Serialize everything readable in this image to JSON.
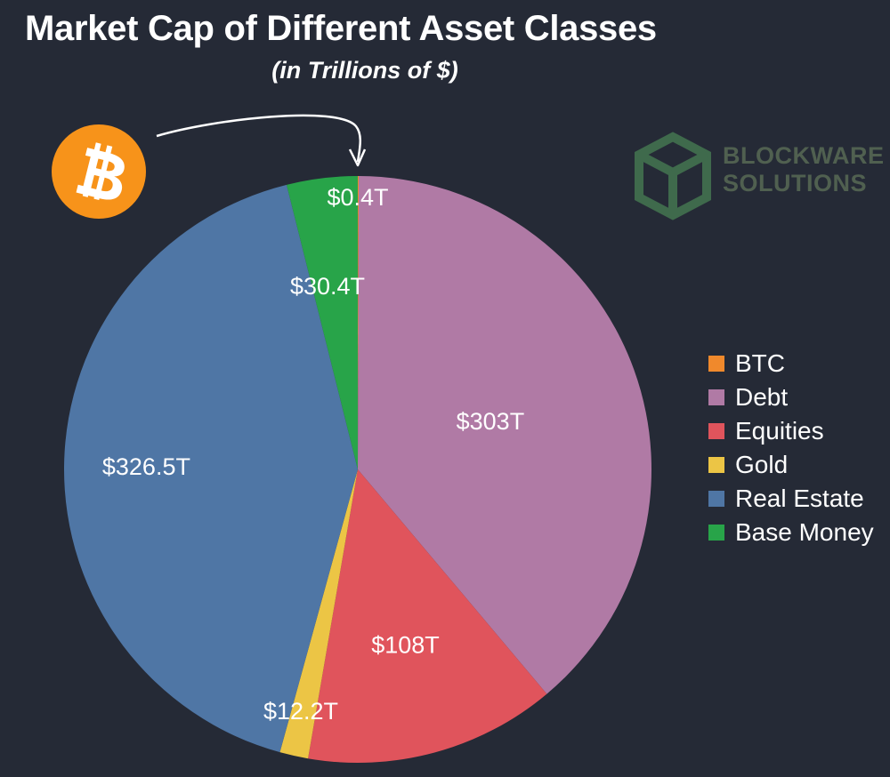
{
  "title": "Market Cap of Different Asset Classes",
  "subtitle": "(in Trillions of $)",
  "logo": {
    "text_line1": "BLOCKWARE",
    "text_line2": "SOLUTIONS",
    "color": "#506050"
  },
  "badge": {
    "icon": "bitcoin-icon",
    "color": "#f7931a"
  },
  "chart_data": {
    "type": "pie",
    "title": "Market Cap of Different Asset Classes",
    "subtitle": "(in Trillions of $)",
    "legend_position": "right",
    "slices": [
      {
        "name": "BTC",
        "value": 0.4,
        "label": "$0.4T",
        "color": "#f0892c"
      },
      {
        "name": "Debt",
        "value": 303,
        "label": "$303T",
        "color": "#b07aa5"
      },
      {
        "name": "Equities",
        "value": 108,
        "label": "$108T",
        "color": "#e0545c"
      },
      {
        "name": "Gold",
        "value": 12.2,
        "label": "$12.2T",
        "color": "#ecc545"
      },
      {
        "name": "Real Estate",
        "value": 326.5,
        "label": "$326.5T",
        "color": "#4f76a5"
      },
      {
        "name": "Base Money",
        "value": 30.4,
        "label": "$30.4T",
        "color": "#28a449"
      }
    ]
  }
}
